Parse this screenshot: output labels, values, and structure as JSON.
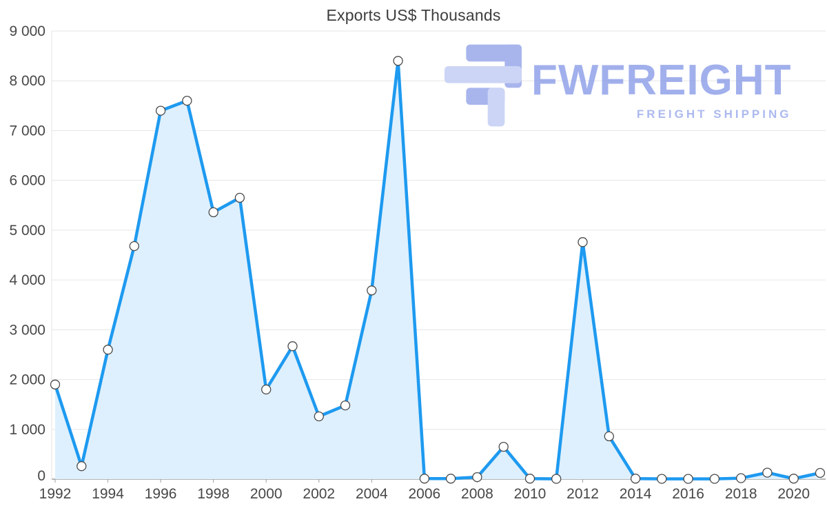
{
  "chart_data": {
    "type": "area",
    "title": "Exports US$ Thousands",
    "x": [
      1992,
      1993,
      1994,
      1995,
      1996,
      1997,
      1998,
      1999,
      2000,
      2001,
      2002,
      2003,
      2004,
      2005,
      2006,
      2007,
      2008,
      2009,
      2010,
      2011,
      2012,
      2013,
      2014,
      2015,
      2016,
      2017,
      2018,
      2019,
      2020,
      2021
    ],
    "values": [
      1900,
      260,
      2600,
      4680,
      7400,
      7600,
      5360,
      5650,
      1800,
      2670,
      1260,
      1480,
      3790,
      8400,
      10,
      10,
      40,
      650,
      10,
      5,
      4760,
      860,
      10,
      5,
      5,
      5,
      20,
      130,
      10,
      125
    ],
    "xlabel": "",
    "ylabel": "",
    "ylim": [
      0,
      9000
    ],
    "ytick_step": 1000,
    "xtick_step": 2,
    "last_labeled_x": 2020,
    "grid": true,
    "legend": "none",
    "line_color": "#1e9af0",
    "fill_color": "#def0fd",
    "point_fill": "#ffffff",
    "point_stroke": "#4a4a4a",
    "grid_color": "#e6e6e6",
    "axis_color": "#9e9e9e",
    "label_color": "#474747"
  },
  "logo": {
    "text": "FWFREIGHT",
    "subtitle": "FREIGHT SHIPPING",
    "icon": "freight-logo-icon",
    "color_main": "#95a5ea",
    "color_light": "#c2ccf4"
  }
}
